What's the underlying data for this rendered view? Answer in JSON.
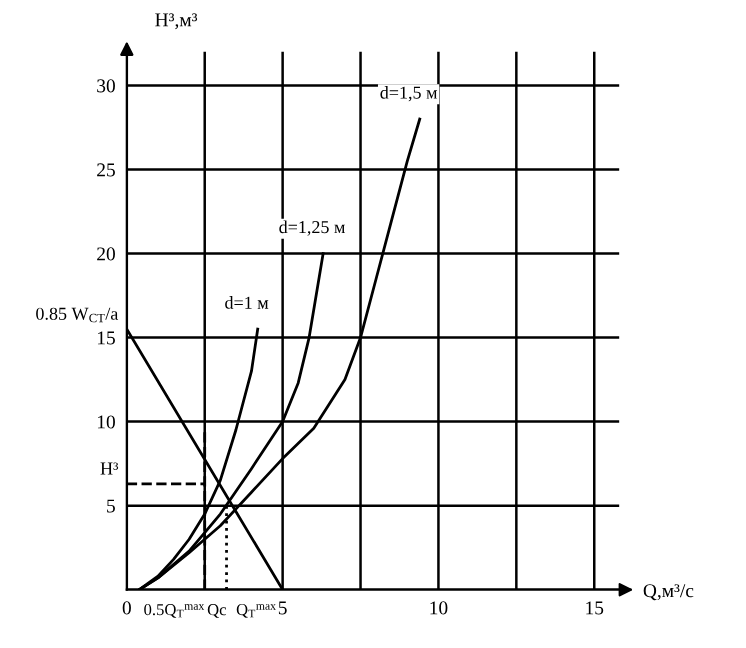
{
  "chart_data": {
    "type": "line",
    "xlabel": "Q,м³/с",
    "ylabel": "H³,м³",
    "xlim": [
      0,
      15.8
    ],
    "ylim": [
      0,
      32
    ],
    "xticks": [
      {
        "value": 0,
        "label": "0"
      },
      {
        "value": 2.5,
        "label": null
      },
      5,
      {
        "value": 7.5,
        "label": null
      },
      10,
      {
        "value": 12.5,
        "label": null
      },
      15
    ],
    "yticks": [
      {
        "value": 0,
        "label": null
      },
      5,
      10,
      15,
      20,
      25,
      30
    ],
    "grid": true,
    "marker": "none",
    "line_style": "solid",
    "series": [
      {
        "name": "d=1 м",
        "color": "#000000",
        "x": [
          0.4,
          1,
          1.5,
          2,
          2.5,
          3,
          3.5,
          4,
          4.2
        ],
        "values": [
          0,
          0.8,
          1.8,
          3,
          4.5,
          6.5,
          9.5,
          13,
          15.5
        ]
      },
      {
        "name": "d=1,25 м",
        "color": "#000000",
        "x": [
          0.4,
          1,
          2,
          3,
          4,
          5,
          5.5,
          5.85,
          6.3
        ],
        "values": [
          0,
          0.7,
          2.3,
          4.5,
          7.2,
          10,
          12.3,
          15,
          20
        ]
      },
      {
        "name": "d=1,5 м",
        "color": "#000000",
        "x": [
          0.4,
          1,
          2,
          3,
          4,
          5,
          6,
          7,
          7.5,
          8,
          8.5,
          9,
          9.4
        ],
        "values": [
          0,
          0.7,
          2.2,
          3.8,
          5.8,
          7.8,
          9.6,
          12.5,
          15,
          18.5,
          22,
          25.5,
          28
        ]
      },
      {
        "color": "#000000",
        "x": [
          0,
          5
        ],
        "values": [
          15.5,
          0
        ]
      },
      {
        "color": "#000000",
        "line_style": "dashed",
        "x": [
          2.5,
          2.5
        ],
        "values": [
          0,
          9.5
        ]
      },
      {
        "color": "#000000",
        "line_style": "dashed",
        "x": [
          0,
          2.5
        ],
        "values": [
          6.3,
          6.3
        ]
      },
      {
        "color": "#000000",
        "line_style": "dotted",
        "x": [
          3.2,
          3.2
        ],
        "values": [
          0,
          5.2
        ]
      }
    ],
    "annotations": [
      {
        "text": "0.85 W$_{CT}$/a",
        "x": 0,
        "y": 15.5
      },
      {
        "text": "H³",
        "x": 0,
        "y": 6.3
      },
      {
        "text": "0.5Q$_{T}$$^{max}$",
        "x": 2.5,
        "y": 0
      },
      {
        "text": "Qc",
        "x": 3.2,
        "y": 0
      },
      {
        "text": "Q$_{T}$$^{max}$",
        "x": 4.8,
        "y": 0
      }
    ]
  }
}
